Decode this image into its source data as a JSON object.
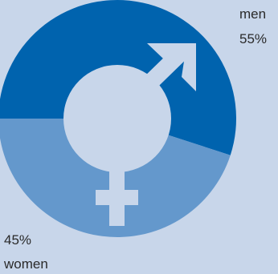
{
  "chart_data": {
    "type": "pie",
    "style": "donut",
    "categories": [
      "men",
      "women"
    ],
    "values": [
      55,
      45
    ],
    "value_labels": [
      "55%",
      "45%"
    ],
    "colors": [
      "#0063ae",
      "#6498cc"
    ],
    "center_symbol": "male-female-symbol-icon",
    "center_color": "#c8d6ea",
    "title": ""
  }
}
